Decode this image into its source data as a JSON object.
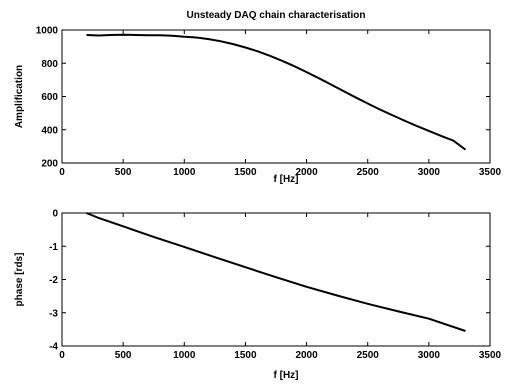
{
  "chart_data": [
    {
      "type": "line",
      "title": "Unsteady DAQ chain characterisation",
      "xlabel": "f [Hz]",
      "ylabel": "Amplification",
      "xlim": [
        0,
        3500
      ],
      "ylim": [
        200,
        1000
      ],
      "xticks": [
        0,
        500,
        1000,
        1500,
        2000,
        2500,
        3000,
        3500
      ],
      "yticks": [
        200,
        400,
        600,
        800,
        1000
      ],
      "grid": false,
      "series": [
        {
          "x": [
            200,
            300,
            400,
            500,
            600,
            700,
            800,
            900,
            1000,
            1100,
            1200,
            1300,
            1400,
            1500,
            1600,
            1700,
            1800,
            1900,
            2000,
            2100,
            2200,
            2300,
            2400,
            2500,
            2600,
            2700,
            2800,
            2900,
            3000,
            3100,
            3200,
            3300
          ],
          "y": [
            970,
            967,
            970,
            972,
            970,
            969,
            968,
            965,
            960,
            955,
            945,
            932,
            915,
            895,
            872,
            845,
            815,
            782,
            747,
            710,
            672,
            633,
            595,
            558,
            522,
            488,
            455,
            423,
            393,
            363,
            335,
            280
          ]
        }
      ]
    },
    {
      "type": "line",
      "title": "",
      "xlabel": "f [Hz]",
      "ylabel": "phase [rds]",
      "xlim": [
        0,
        3500
      ],
      "ylim": [
        -4,
        0
      ],
      "xticks": [
        0,
        500,
        1000,
        1500,
        2000,
        2500,
        3000,
        3500
      ],
      "yticks": [
        -4,
        -3,
        -2,
        -1,
        0
      ],
      "grid": false,
      "series": [
        {
          "x": [
            200,
            300,
            500,
            750,
            1000,
            1250,
            1500,
            1750,
            2000,
            2250,
            2500,
            2750,
            3000,
            3300
          ],
          "y": [
            0.0,
            -0.15,
            -0.4,
            -0.72,
            -1.02,
            -1.33,
            -1.63,
            -1.93,
            -2.22,
            -2.48,
            -2.73,
            -2.96,
            -3.18,
            -3.55
          ]
        }
      ]
    }
  ]
}
